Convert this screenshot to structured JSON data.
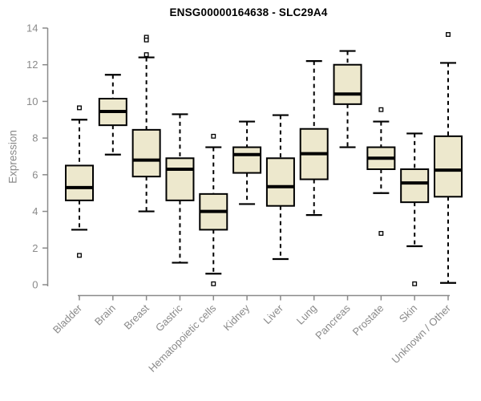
{
  "colors": {
    "box_fill": "#EDE8CD",
    "box_border": "#000000",
    "median": "#000000",
    "whisker": "#000000",
    "outlier_fill": "#FFFFFF",
    "axis": "#8A8A8A",
    "tick_label": "#8A8A8A",
    "title": "#000000"
  },
  "chart_data": {
    "type": "boxplot",
    "title": "ENSG00000164638 - SLC29A4",
    "xlabel": "",
    "ylabel": "Expression",
    "ylim": [
      0,
      14
    ],
    "y_ticks": [
      0,
      2,
      4,
      6,
      8,
      10,
      12,
      14
    ],
    "grid": false,
    "legend": "none",
    "categories": [
      "Bladder",
      "Brain",
      "Breast",
      "Gastric",
      "Hematopoietic cells",
      "Kidney",
      "Liver",
      "Lung",
      "Pancreas",
      "Prostate",
      "Skin",
      "Unknown / Other"
    ],
    "boxes": [
      {
        "category": "Bladder",
        "whisker_low": 3.0,
        "q1": 4.6,
        "median": 5.3,
        "q3": 6.5,
        "whisker_high": 9.0,
        "outliers": [
          9.65,
          1.6
        ]
      },
      {
        "category": "Brain",
        "whisker_low": 7.1,
        "q1": 8.7,
        "median": 9.45,
        "q3": 10.15,
        "whisker_high": 11.45,
        "outliers": []
      },
      {
        "category": "Breast",
        "whisker_low": 4.0,
        "q1": 5.9,
        "median": 6.8,
        "q3": 8.45,
        "whisker_high": 12.4,
        "outliers": [
          13.5,
          13.35,
          12.55
        ]
      },
      {
        "category": "Gastric",
        "whisker_low": 1.2,
        "q1": 4.6,
        "median": 6.3,
        "q3": 6.9,
        "whisker_high": 9.3,
        "outliers": []
      },
      {
        "category": "Hematopoietic cells",
        "whisker_low": 0.6,
        "q1": 3.0,
        "median": 4.0,
        "q3": 4.95,
        "whisker_high": 7.5,
        "outliers": [
          8.1,
          0.05
        ]
      },
      {
        "category": "Kidney",
        "whisker_low": 4.4,
        "q1": 6.1,
        "median": 7.1,
        "q3": 7.5,
        "whisker_high": 8.9,
        "outliers": []
      },
      {
        "category": "Liver",
        "whisker_low": 1.4,
        "q1": 4.3,
        "median": 5.35,
        "q3": 6.9,
        "whisker_high": 9.25,
        "outliers": []
      },
      {
        "category": "Lung",
        "whisker_low": 3.8,
        "q1": 5.75,
        "median": 7.15,
        "q3": 8.5,
        "whisker_high": 12.2,
        "outliers": []
      },
      {
        "category": "Pancreas",
        "whisker_low": 7.5,
        "q1": 9.85,
        "median": 10.4,
        "q3": 12.0,
        "whisker_high": 12.75,
        "outliers": []
      },
      {
        "category": "Prostate",
        "whisker_low": 5.0,
        "q1": 6.3,
        "median": 6.9,
        "q3": 7.5,
        "whisker_high": 8.9,
        "outliers": [
          9.55,
          2.8
        ]
      },
      {
        "category": "Skin",
        "whisker_low": 2.1,
        "q1": 4.5,
        "median": 5.55,
        "q3": 6.3,
        "whisker_high": 8.25,
        "outliers": [
          0.05
        ]
      },
      {
        "category": "Unknown / Other",
        "whisker_low": 0.1,
        "q1": 4.8,
        "median": 6.25,
        "q3": 8.1,
        "whisker_high": 12.1,
        "outliers": [
          13.65
        ]
      }
    ]
  }
}
